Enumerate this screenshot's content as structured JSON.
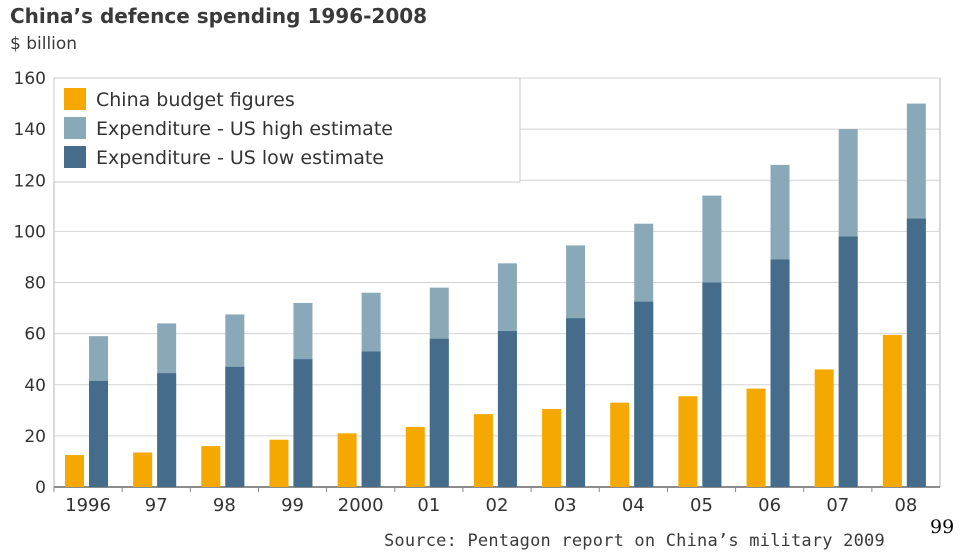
{
  "chart_data": {
    "type": "bar",
    "title": "China’s defence spending 1996-2008",
    "subtitle": "$ billion",
    "source": "Source: Pentagon report on China’s military 2009",
    "categories": [
      "1996",
      "97",
      "98",
      "99",
      "2000",
      "01",
      "02",
      "03",
      "04",
      "05",
      "06",
      "07",
      "08"
    ],
    "ylim": [
      0,
      160
    ],
    "yticks": [
      0,
      20,
      40,
      60,
      80,
      100,
      120,
      140,
      160
    ],
    "grid": true,
    "legend_position": "top-left",
    "series": [
      {
        "name": "China budget figures",
        "color": "#f5a800",
        "values": [
          12.5,
          13.5,
          16,
          18.5,
          21,
          23.5,
          28.5,
          30.5,
          33,
          35.5,
          38.5,
          46,
          59.5
        ]
      },
      {
        "name": "Expenditure - US high estimate",
        "color": "#8aa9b8",
        "values": [
          59,
          64,
          67.5,
          72,
          76,
          78,
          87.5,
          94.5,
          103,
          114,
          126,
          140,
          150
        ]
      },
      {
        "name": "Expenditure - US low estimate",
        "color": "#456c8b",
        "values": [
          41.5,
          44.5,
          47,
          50,
          53,
          58,
          61,
          66,
          72.5,
          80,
          89,
          98,
          105
        ]
      }
    ]
  },
  "page_number": "99"
}
